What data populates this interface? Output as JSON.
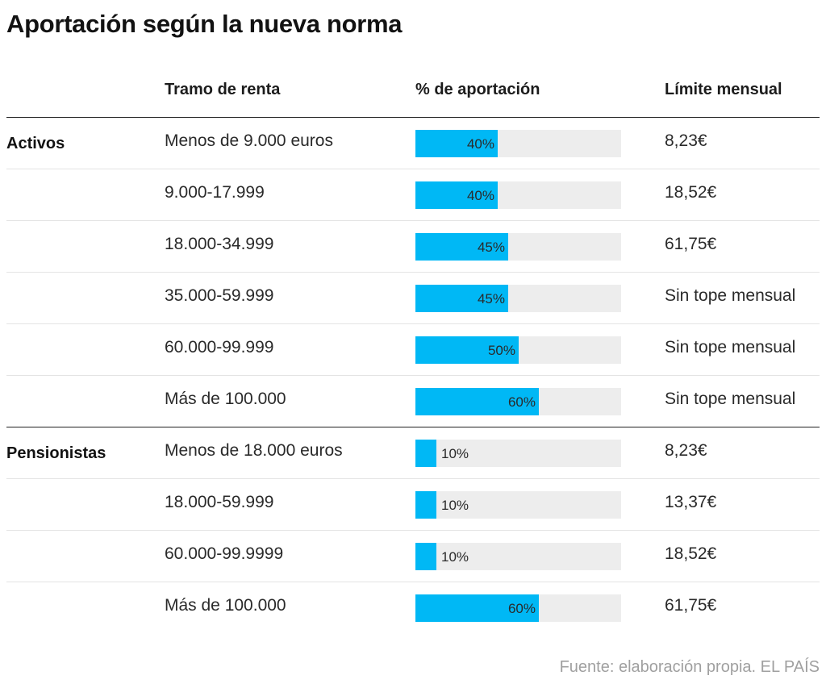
{
  "chart_data": {
    "type": "table",
    "title": "Aportación según la nueva norma",
    "columns": [
      "Tramo de renta",
      "% de aportación",
      "Límite mensual"
    ],
    "groups": [
      {
        "name": "Activos",
        "rows": [
          {
            "tramo": "Menos de 9.000 euros",
            "pct": 40,
            "pct_label": "40%",
            "limite": "8,23€"
          },
          {
            "tramo": "9.000-17.999",
            "pct": 40,
            "pct_label": "40%",
            "limite": "18,52€"
          },
          {
            "tramo": "18.000-34.999",
            "pct": 45,
            "pct_label": "45%",
            "limite": "61,75€"
          },
          {
            "tramo": "35.000-59.999",
            "pct": 45,
            "pct_label": "45%",
            "limite": "Sin tope mensual"
          },
          {
            "tramo": "60.000-99.999",
            "pct": 50,
            "pct_label": "50%",
            "limite": "Sin tope mensual"
          },
          {
            "tramo": "Más de 100.000",
            "pct": 60,
            "pct_label": "60%",
            "limite": "Sin tope mensual"
          }
        ]
      },
      {
        "name": "Pensionistas",
        "rows": [
          {
            "tramo": "Menos de 18.000 euros",
            "pct": 10,
            "pct_label": "10%",
            "limite": "8,23€"
          },
          {
            "tramo": "18.000-59.999",
            "pct": 10,
            "pct_label": "10%",
            "limite": "13,37€"
          },
          {
            "tramo": "60.000-99.9999",
            "pct": 10,
            "pct_label": "10%",
            "limite": "18,52€"
          },
          {
            "tramo": "Más de 100.000",
            "pct": 60,
            "pct_label": "60%",
            "limite": "61,75€"
          }
        ]
      }
    ],
    "bar_scale_max": 100,
    "bar_color": "#00b8f5",
    "track_color": "#ededed"
  },
  "source": "Fuente: elaboración propia. EL PAÍS"
}
